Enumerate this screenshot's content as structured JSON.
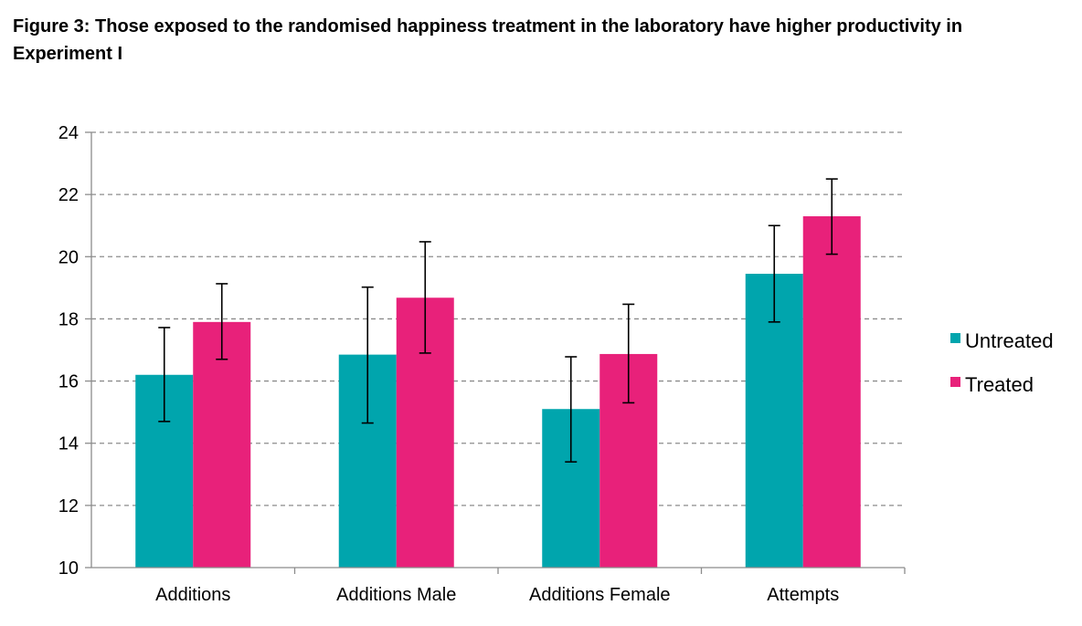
{
  "title": "Figure 3: Those exposed to the randomised happiness treatment in the laboratory have higher productivity in Experiment I",
  "colors": {
    "untreated": "#00A5AD",
    "treated": "#E8217A",
    "grid": "#8c8c8c",
    "axis": "#8c8c8c"
  },
  "chart_data": {
    "type": "bar",
    "title": "Figure 3: Those exposed to the randomised happiness treatment in the laboratory have higher productivity in Experiment I",
    "categories": [
      "Additions",
      "Additions Male",
      "Additions Female",
      "Attempts"
    ],
    "series": [
      {
        "name": "Untreated",
        "values": [
          16.2,
          16.85,
          15.1,
          19.45
        ],
        "err_low": [
          14.7,
          14.65,
          13.4,
          17.9
        ],
        "err_high": [
          17.72,
          19.02,
          16.78,
          21.0
        ]
      },
      {
        "name": "Treated",
        "values": [
          17.9,
          18.68,
          16.87,
          21.3
        ],
        "err_low": [
          16.7,
          16.9,
          15.3,
          20.08
        ],
        "err_high": [
          19.13,
          20.48,
          18.47,
          22.5
        ]
      }
    ],
    "xlabel": "",
    "ylabel": "",
    "ylim": [
      10,
      24
    ],
    "yticks": [
      10,
      12,
      14,
      16,
      18,
      20,
      22,
      24
    ],
    "grid": true,
    "legend": "right"
  }
}
